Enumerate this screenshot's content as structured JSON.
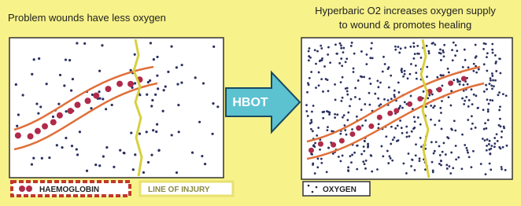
{
  "left_panel": {
    "title": "Problem wounds have less oxygen"
  },
  "arrow": {
    "label": "HBOT"
  },
  "right_panel": {
    "title_lines": [
      "Hyperbaric O2 increases oxygen supply",
      "to wound & promotes healing"
    ]
  },
  "legend": {
    "haemoglobin": "HAEMOGLOBIN",
    "line_of_injury": "LINE OF INJURY",
    "oxygen": "OXYGEN"
  }
}
